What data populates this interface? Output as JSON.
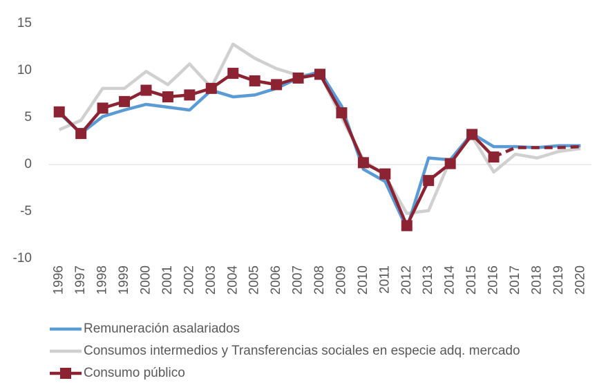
{
  "chart_data": {
    "type": "line",
    "categories": [
      "1996",
      "1997",
      "1998",
      "1999",
      "2000",
      "2001",
      "2002",
      "2003",
      "2004",
      "2005",
      "2006",
      "2007",
      "2008",
      "2009",
      "2010",
      "2011",
      "2012",
      "2013",
      "2014",
      "2015",
      "2016",
      "2017",
      "2018",
      "2019",
      "2020"
    ],
    "series": [
      {
        "name": "Remuneración asalariados",
        "color": "#5b9bd5",
        "marker": "none",
        "values": [
          5.5,
          3.3,
          5.1,
          5.8,
          6.4,
          6.1,
          5.8,
          7.9,
          7.2,
          7.4,
          8.1,
          9.2,
          9.9,
          6.2,
          -0.5,
          -1.8,
          -6.8,
          0.7,
          0.5,
          3.3,
          1.9,
          1.9,
          1.8,
          2.0,
          2.0
        ]
      },
      {
        "name": "Consumos intermedios y Transferencias sociales en especie adq. mercado",
        "color": "#d0d0d0",
        "marker": "none",
        "values": [
          3.7,
          4.7,
          8.1,
          8.1,
          9.9,
          8.5,
          10.7,
          8.2,
          12.8,
          11.3,
          10.2,
          9.5,
          9.6,
          5.0,
          0.5,
          -1.2,
          -5.2,
          -4.9,
          0.5,
          3.0,
          -0.8,
          1.1,
          0.7,
          1.4,
          1.7
        ]
      },
      {
        "name": "Consumo público",
        "color": "#8b2332",
        "marker": "square",
        "dashed_from": "2016",
        "values": [
          5.6,
          3.3,
          6.0,
          6.7,
          7.9,
          7.2,
          7.4,
          8.1,
          9.7,
          8.9,
          8.5,
          9.2,
          9.6,
          5.5,
          0.2,
          -1.0,
          -6.5,
          -1.7,
          0.1,
          3.2,
          0.8,
          1.8,
          1.8,
          1.8,
          1.9
        ]
      }
    ],
    "ylim": [
      -10,
      15
    ],
    "yticks": [
      -10,
      -5,
      0,
      5,
      10,
      15
    ],
    "grid": false,
    "legend": "bottom"
  }
}
